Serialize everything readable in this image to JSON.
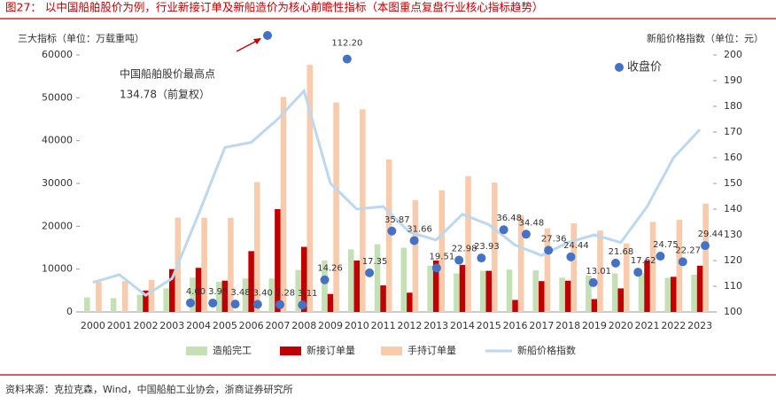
{
  "header": {
    "title": "图27：   以中国船舶股价为例，行业新接订单及新船造价为核心前瞻性指标（本图重点复盘行业核心指标趋势）"
  },
  "footer": {
    "source": "资料来源：克拉克森，Wind，中国船舶工业协会，浙商证券研究所"
  },
  "chart_data": {
    "type": "bar",
    "y_label": "三大指标（单位：万载重吨）",
    "y2_label": "新船价格指数（单位：元）",
    "categories": [
      "2000",
      "2001",
      "2002",
      "2003",
      "2004",
      "2005",
      "2006",
      "2007",
      "2008",
      "2009",
      "2010",
      "2011",
      "2012",
      "2013",
      "2014",
      "2015",
      "2016",
      "2017",
      "2018",
      "2019",
      "2020",
      "2021",
      "2022",
      "2023"
    ],
    "ylim": [
      0,
      60000
    ],
    "yticks": [
      0,
      10000,
      20000,
      30000,
      40000,
      50000,
      60000
    ],
    "y2lim": [
      100,
      200
    ],
    "y2ticks": [
      100,
      110,
      120,
      130,
      140,
      150,
      160,
      170,
      180,
      190,
      200
    ],
    "series": [
      {
        "name": "造船完工",
        "color": "#c5e0b4",
        "values": [
          3400,
          3200,
          4000,
          5500,
          8000,
          7000,
          7800,
          7800,
          9800,
          12000,
          14600,
          15800,
          15000,
          10800,
          9000,
          9600,
          9900,
          9700,
          8000,
          8500,
          9000,
          9000,
          8000,
          8700
        ]
      },
      {
        "name": "新接订单量",
        "color": "#c00000",
        "values": [
          0,
          0,
          5000,
          10000,
          10300,
          7300,
          14200,
          24000,
          15200,
          4200,
          12000,
          6200,
          4500,
          12000,
          11000,
          9600,
          2800,
          7200,
          7300,
          3000,
          5500,
          12000,
          8200,
          10800
        ]
      },
      {
        "name": "手持订单量",
        "color": "#f8cbad",
        "values": [
          7000,
          7200,
          7500,
          22000,
          22000,
          22000,
          30300,
          50200,
          57700,
          48900,
          47300,
          35600,
          26100,
          28400,
          31700,
          30200,
          22500,
          19500,
          20700,
          19000,
          16000,
          21000,
          21500,
          25300
        ]
      },
      {
        "name": "新船价格指数",
        "color": "#bdd7ee",
        "type": "line",
        "axis": "y2",
        "values": [
          111.5,
          114.5,
          106.5,
          113,
          138,
          164,
          166,
          175,
          186,
          150,
          140,
          141,
          131,
          128,
          138,
          134,
          126,
          122,
          127,
          130,
          127,
          141,
          160,
          171
        ]
      }
    ],
    "close": {
      "name": "收盘价",
      "color": "#4472c4",
      "ylim": [
        0,
        114
      ],
      "values": [
        4.0,
        3.95,
        3.48,
        3.4,
        3.28,
        3.11,
        14.26,
        112.2,
        17.35,
        35.87,
        31.66,
        19.51,
        22.98,
        23.93,
        36.48,
        34.48,
        27.36,
        24.44,
        13.01,
        21.68,
        17.62,
        24.75,
        22.27,
        29.44
      ],
      "value_labels": [
        "4.00",
        "3.95",
        "3.48",
        "3.40",
        "3.28",
        "3.11",
        "14.26",
        "112.20",
        "17.35",
        "35.87",
        "31.66",
        "19.51",
        "22.98",
        "23.93",
        "36.48",
        "34.48",
        "27.36",
        "24.44",
        "13.01",
        "21.68",
        "17.62",
        "24.75",
        "22.27",
        "29.44"
      ]
    },
    "peak": {
      "title": "中国船舶股价最高点",
      "value": 134.78,
      "label": "134.78（前复权）"
    }
  }
}
